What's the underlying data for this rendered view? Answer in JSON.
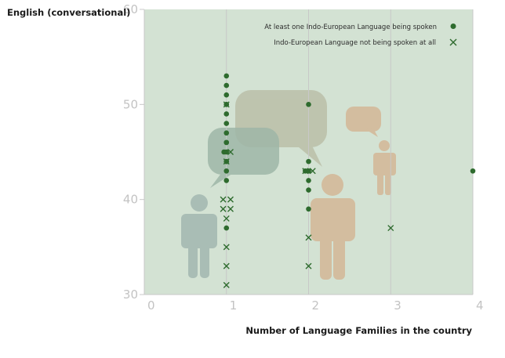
{
  "chart_data": {
    "type": "scatter",
    "ylabel": "English (conversational)",
    "xlabel": "Number of Language Families in the country",
    "xlim": [
      0,
      4
    ],
    "ylim": [
      30,
      60
    ],
    "x_ticks": [
      0,
      1,
      2,
      3,
      4
    ],
    "y_ticks": [
      30,
      40,
      50,
      60
    ],
    "grid": false,
    "legend_position": "top-right",
    "background_color": "#d3e2d3",
    "series_color": "#2e6b2e",
    "series": [
      {
        "name": "At least one Indo-European Language being spoken",
        "marker": "circle",
        "points": [
          {
            "x": 1,
            "y": 53
          },
          {
            "x": 1,
            "y": 52
          },
          {
            "x": 1,
            "y": 51
          },
          {
            "x": 1,
            "y": 50
          },
          {
            "x": 1,
            "y": 50
          },
          {
            "x": 1,
            "y": 49
          },
          {
            "x": 1,
            "y": 48
          },
          {
            "x": 1,
            "y": 47
          },
          {
            "x": 1,
            "y": 46
          },
          {
            "x": 1,
            "y": 46
          },
          {
            "x": 1,
            "y": 45
          },
          {
            "x": 0.97,
            "y": 45
          },
          {
            "x": 1,
            "y": 44
          },
          {
            "x": 1,
            "y": 44
          },
          {
            "x": 1,
            "y": 43
          },
          {
            "x": 1,
            "y": 42
          },
          {
            "x": 1,
            "y": 37
          },
          {
            "x": 2,
            "y": 50
          },
          {
            "x": 2,
            "y": 44
          },
          {
            "x": 2,
            "y": 43
          },
          {
            "x": 1.96,
            "y": 43
          },
          {
            "x": 2,
            "y": 42
          },
          {
            "x": 2,
            "y": 41
          },
          {
            "x": 2,
            "y": 39
          },
          {
            "x": 4,
            "y": 43
          }
        ]
      },
      {
        "name": "Indo-European Language not being spoken at all",
        "marker": "x",
        "points": [
          {
            "x": 1,
            "y": 50
          },
          {
            "x": 1.05,
            "y": 45
          },
          {
            "x": 1,
            "y": 44
          },
          {
            "x": 0.96,
            "y": 40
          },
          {
            "x": 1.05,
            "y": 40
          },
          {
            "x": 0.96,
            "y": 39
          },
          {
            "x": 1.05,
            "y": 39
          },
          {
            "x": 1,
            "y": 38
          },
          {
            "x": 1,
            "y": 35
          },
          {
            "x": 1,
            "y": 33
          },
          {
            "x": 1,
            "y": 31
          },
          {
            "x": 1.96,
            "y": 43
          },
          {
            "x": 2.05,
            "y": 43
          },
          {
            "x": 2,
            "y": 36
          },
          {
            "x": 2,
            "y": 33
          },
          {
            "x": 3,
            "y": 37
          }
        ]
      }
    ]
  }
}
